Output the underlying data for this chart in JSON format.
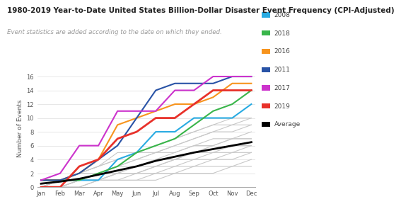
{
  "title": "1980-2019 Year-to-Date United States Billion-Dollar Disaster Event Frequency (CPI-Adjusted)",
  "subtitle": "Event statistics are added according to the date on which they ended.",
  "ylabel": "Number of Events",
  "months": [
    "Jan",
    "Feb",
    "Mar",
    "Apr",
    "May",
    "Jun",
    "Jul",
    "Aug",
    "Sep",
    "Oct",
    "Nov",
    "Dec"
  ],
  "ylim": [
    0,
    17
  ],
  "yticks": [
    0,
    2,
    4,
    6,
    8,
    10,
    12,
    14,
    16
  ],
  "series_2008": [
    1,
    1,
    1,
    1,
    4,
    5,
    8,
    8,
    10,
    10,
    10,
    12
  ],
  "series_2018": [
    1,
    1,
    1,
    2,
    3,
    5,
    6,
    7,
    9,
    11,
    12,
    14
  ],
  "series_2016": [
    1,
    1,
    2,
    4,
    9,
    10,
    11,
    12,
    12,
    13,
    15,
    15
  ],
  "series_2011": [
    1,
    1,
    2,
    4,
    6,
    10,
    14,
    15,
    15,
    15,
    16,
    16
  ],
  "series_2017": [
    1,
    2,
    6,
    6,
    11,
    11,
    11,
    14,
    14,
    16,
    16,
    16
  ],
  "series_2019": [
    0,
    0,
    3,
    4,
    7,
    8,
    10,
    10,
    12,
    14,
    14,
    14
  ],
  "series_avg": [
    0.5,
    0.8,
    1.2,
    1.8,
    2.4,
    3.0,
    3.8,
    4.4,
    5.0,
    5.5,
    6.0,
    6.5
  ],
  "background_lines": [
    [
      0,
      0,
      0,
      1,
      1,
      1,
      1,
      2,
      2,
      2,
      3,
      3
    ],
    [
      0,
      0,
      0,
      1,
      1,
      1,
      2,
      2,
      3,
      3,
      3,
      4
    ],
    [
      0,
      0,
      1,
      1,
      1,
      2,
      2,
      3,
      3,
      4,
      4,
      5
    ],
    [
      0,
      0,
      1,
      1,
      2,
      2,
      3,
      3,
      4,
      4,
      5,
      5
    ],
    [
      0,
      0,
      1,
      1,
      2,
      2,
      3,
      4,
      4,
      5,
      5,
      6
    ],
    [
      0,
      0,
      1,
      1,
      2,
      3,
      3,
      4,
      5,
      5,
      6,
      6
    ],
    [
      0,
      1,
      1,
      2,
      2,
      3,
      4,
      4,
      5,
      6,
      7,
      7
    ],
    [
      0,
      1,
      1,
      2,
      3,
      3,
      4,
      5,
      6,
      6,
      7,
      7
    ],
    [
      0,
      1,
      1,
      2,
      3,
      4,
      5,
      5,
      6,
      7,
      7,
      8
    ],
    [
      0,
      1,
      2,
      2,
      3,
      4,
      5,
      6,
      7,
      8,
      8,
      9
    ],
    [
      0,
      1,
      2,
      3,
      4,
      5,
      5,
      6,
      7,
      8,
      9,
      9
    ],
    [
      0,
      1,
      2,
      3,
      4,
      5,
      6,
      7,
      8,
      9,
      9,
      10
    ],
    [
      0,
      1,
      2,
      3,
      5,
      5,
      6,
      7,
      8,
      9,
      10,
      10
    ]
  ],
  "color_2008": "#29ABE2",
  "color_2018": "#39B54A",
  "color_2016": "#F7941D",
  "color_2011": "#2953A6",
  "color_2017": "#CC33CC",
  "color_2019": "#E8312A",
  "color_avg": "#000000",
  "color_bg_lines": "#C8C8C8",
  "title_fontsize": 7.5,
  "subtitle_fontsize": 6.2,
  "label_fontsize": 6.5,
  "tick_fontsize": 6,
  "legend_fontsize": 6.5
}
